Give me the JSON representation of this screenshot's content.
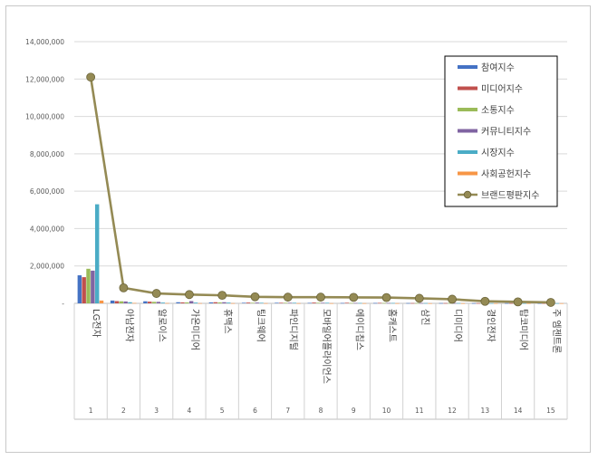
{
  "chart_data": {
    "type": "bar",
    "categories": [
      "LG전자",
      "아남전자",
      "알로이스",
      "가온미디어",
      "휴맥스",
      "팅크웨어",
      "파인디지털",
      "모바일어플라이언스",
      "에이디칩스",
      "홈캐스트",
      "삼진",
      "디미디어",
      "경인전자",
      "탑코미디어",
      "주 엠젠트론"
    ],
    "category_numbers": [
      "1",
      "2",
      "3",
      "4",
      "5",
      "6",
      "7",
      "8",
      "9",
      "10",
      "11",
      "12",
      "13",
      "14",
      "15"
    ],
    "ylim": [
      0,
      14000000
    ],
    "yticks": [
      "14,000,000",
      "12,000,000",
      "10,000,000",
      "8,000,000",
      "6,000,000",
      "4,000,000",
      "2,000,000",
      "-"
    ],
    "legend_position": "top-right",
    "grid": true,
    "series": [
      {
        "name": "참여지수",
        "color": "#4472C4",
        "values": [
          1500000,
          150000,
          110000,
          60000,
          50000,
          30000,
          30000,
          25000,
          20000,
          20000,
          15000,
          15000,
          10000,
          10000,
          8000
        ]
      },
      {
        "name": "미디어지수",
        "color": "#C0504D",
        "values": [
          1400000,
          120000,
          90000,
          50000,
          60000,
          40000,
          30000,
          40000,
          30000,
          25000,
          15000,
          15000,
          10000,
          10000,
          8000
        ]
      },
      {
        "name": "소통지수",
        "color": "#9BBB59",
        "values": [
          1850000,
          110000,
          80000,
          50000,
          50000,
          30000,
          30000,
          30000,
          20000,
          20000,
          15000,
          15000,
          10000,
          10000,
          8000
        ]
      },
      {
        "name": "커뮤니티지수",
        "color": "#8064A2",
        "values": [
          1750000,
          100000,
          80000,
          120000,
          60000,
          40000,
          30000,
          30000,
          20000,
          20000,
          15000,
          15000,
          10000,
          10000,
          8000
        ]
      },
      {
        "name": "시장지수",
        "color": "#4BACC6",
        "values": [
          5300000,
          60000,
          40000,
          40000,
          40000,
          30000,
          30000,
          30000,
          20000,
          20000,
          15000,
          15000,
          10000,
          10000,
          8000
        ]
      },
      {
        "name": "사회공헌지수",
        "color": "#F79646",
        "values": [
          150000,
          20000,
          15000,
          10000,
          10000,
          10000,
          8000,
          8000,
          8000,
          8000,
          5000,
          5000,
          5000,
          5000,
          5000
        ]
      },
      {
        "name": "브랜드평판지수",
        "color": "#948A54",
        "type": "line",
        "values": [
          12100000,
          830000,
          530000,
          470000,
          430000,
          350000,
          330000,
          330000,
          320000,
          310000,
          270000,
          220000,
          110000,
          80000,
          50000
        ]
      }
    ]
  }
}
